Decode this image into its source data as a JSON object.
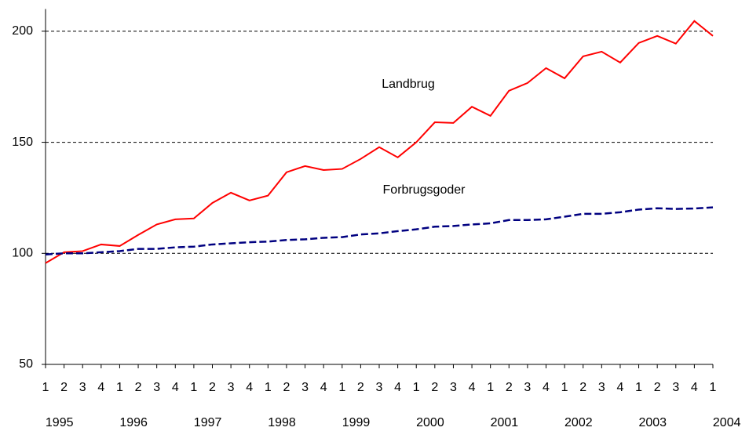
{
  "chart_data": {
    "type": "line",
    "categories": [
      "1",
      "2",
      "3",
      "4",
      "1",
      "2",
      "3",
      "4",
      "1",
      "2",
      "3",
      "4",
      "1",
      "2",
      "3",
      "4",
      "1",
      "2",
      "3",
      "4",
      "1",
      "2",
      "3",
      "4",
      "1",
      "2",
      "3",
      "4",
      "1",
      "2",
      "3",
      "4",
      "1",
      "2",
      "3",
      "4",
      "1"
    ],
    "years": [
      "1995",
      "1996",
      "1997",
      "1998",
      "1999",
      "2000",
      "2001",
      "2002",
      "2003",
      "2004"
    ],
    "series": [
      {
        "name": "Landbrug",
        "color": "#ff0000",
        "dashed": false,
        "values": [
          95.6,
          100.5,
          101,
          104,
          103.3,
          108.3,
          113,
          115.3,
          115.7,
          122.7,
          127.3,
          123.8,
          126,
          136.5,
          139.3,
          137.5,
          138,
          142.5,
          147.8,
          143.2,
          150,
          159,
          158.7,
          166,
          161.9,
          173.2,
          176.7,
          183.4,
          178.8,
          188.7,
          190.8,
          185.9,
          194.7,
          197.9,
          194.4,
          204.6,
          197.9
        ]
      },
      {
        "name": "Forbrugsgoder",
        "color": "#000080",
        "dashed": true,
        "values": [
          99.5,
          100,
          100,
          100.5,
          101,
          102,
          102,
          102.7,
          103,
          104,
          104.5,
          105,
          105.3,
          106,
          106.3,
          107,
          107.3,
          108.5,
          109,
          110,
          110.8,
          112,
          112.3,
          113,
          113.5,
          115,
          115,
          115.3,
          116.5,
          117.8,
          117.8,
          118.5,
          119.7,
          120.3,
          120,
          120.2,
          120.7
        ]
      }
    ],
    "ylim": [
      50,
      210
    ],
    "yticks": [
      50,
      100,
      150,
      200
    ],
    "grid": true
  }
}
